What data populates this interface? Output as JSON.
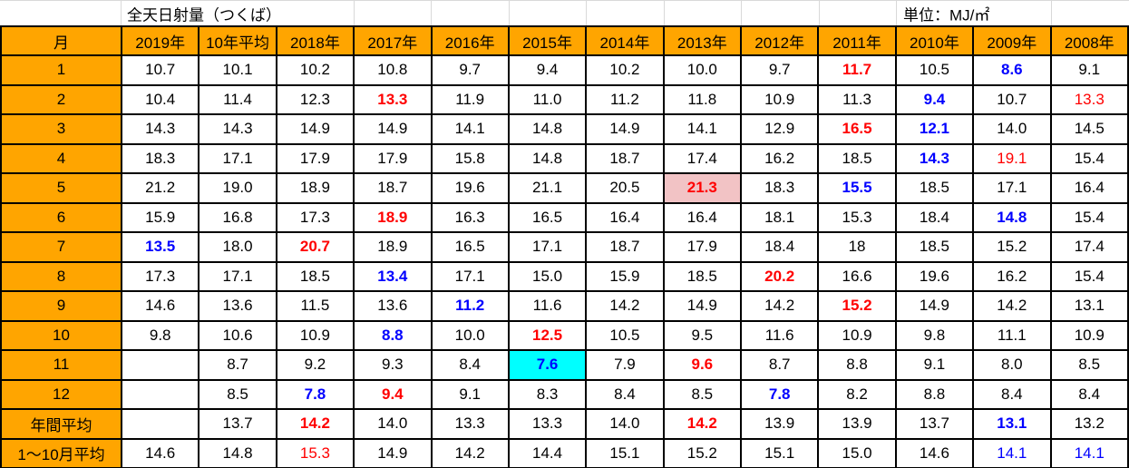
{
  "title": "全天日射量（つくば）",
  "unit_label": "単位：MJ/㎡",
  "colors": {
    "header_bg": "#ffa500",
    "highlight_pink": "#f2c3c5",
    "highlight_cyan": "#00ffff",
    "max_text": "#ff0000",
    "min_text": "#0000ff",
    "border": "#000000",
    "gridline": "#d9d9d9"
  },
  "table": {
    "columns": [
      "月",
      "2019年",
      "10年平均",
      "2018年",
      "2017年",
      "2016年",
      "2015年",
      "2014年",
      "2013年",
      "2012年",
      "2011年",
      "2010年",
      "2009年",
      "2008年"
    ],
    "rows": [
      {
        "label": "1",
        "cells": [
          "10.7",
          "10.1",
          "10.2",
          "10.8",
          "9.7",
          "9.4",
          "10.2",
          "10.0",
          "9.7",
          {
            "v": "11.7",
            "c": "red",
            "b": true
          },
          "10.5",
          {
            "v": "8.6",
            "c": "blue",
            "b": true
          },
          "9.1"
        ]
      },
      {
        "label": "2",
        "cells": [
          "10.4",
          "11.4",
          "12.3",
          {
            "v": "13.3",
            "c": "red",
            "b": true
          },
          "11.9",
          "11.0",
          "11.2",
          "11.8",
          "10.9",
          "11.3",
          {
            "v": "9.4",
            "c": "blue",
            "b": true
          },
          "10.7",
          {
            "v": "13.3",
            "c": "red"
          }
        ]
      },
      {
        "label": "3",
        "cells": [
          "14.3",
          "14.3",
          "14.9",
          "14.9",
          "14.1",
          "14.8",
          "14.9",
          "14.1",
          "12.9",
          {
            "v": "16.5",
            "c": "red",
            "b": true
          },
          {
            "v": "12.1",
            "c": "blue",
            "b": true
          },
          "14.0",
          "14.5"
        ]
      },
      {
        "label": "4",
        "cells": [
          "18.3",
          "17.1",
          "17.9",
          "17.9",
          "15.8",
          "14.8",
          "18.7",
          "17.4",
          "16.2",
          "18.5",
          {
            "v": "14.3",
            "c": "blue",
            "b": true
          },
          {
            "v": "19.1",
            "c": "red"
          },
          "15.4"
        ]
      },
      {
        "label": "5",
        "cells": [
          "21.2",
          "19.0",
          "18.9",
          "18.7",
          "19.6",
          "21.1",
          "20.5",
          {
            "v": "21.3",
            "c": "red",
            "b": true,
            "bg": "pink"
          },
          "18.3",
          {
            "v": "15.5",
            "c": "blue",
            "b": true
          },
          "18.5",
          "17.1",
          "16.4"
        ]
      },
      {
        "label": "6",
        "cells": [
          "15.9",
          "16.8",
          "17.3",
          {
            "v": "18.9",
            "c": "red",
            "b": true
          },
          "16.3",
          "16.5",
          "16.4",
          "16.4",
          "18.1",
          "15.3",
          "18.4",
          {
            "v": "14.8",
            "c": "blue",
            "b": true
          },
          "15.4"
        ]
      },
      {
        "label": "7",
        "cells": [
          {
            "v": "13.5",
            "c": "blue",
            "b": true
          },
          "18.0",
          {
            "v": "20.7",
            "c": "red",
            "b": true
          },
          "18.9",
          "16.5",
          "17.1",
          "18.7",
          "17.9",
          "18.4",
          "18",
          "18.5",
          "15.2",
          "17.4"
        ]
      },
      {
        "label": "8",
        "cells": [
          "17.3",
          "17.1",
          "18.5",
          {
            "v": "13.4",
            "c": "blue",
            "b": true
          },
          "17.1",
          "15.0",
          "15.9",
          "18.5",
          {
            "v": "20.2",
            "c": "red",
            "b": true
          },
          "16.6",
          "19.6",
          "16.2",
          "15.4"
        ]
      },
      {
        "label": "9",
        "cells": [
          "14.6",
          "13.6",
          "11.5",
          "13.6",
          {
            "v": "11.2",
            "c": "blue",
            "b": true
          },
          "11.6",
          "14.2",
          "14.9",
          "14.2",
          {
            "v": "15.2",
            "c": "red",
            "b": true
          },
          "14.9",
          "14.2",
          "13.1"
        ]
      },
      {
        "label": "10",
        "cells": [
          "9.8",
          "10.6",
          "10.9",
          {
            "v": "8.8",
            "c": "blue",
            "b": true
          },
          "10.0",
          {
            "v": "12.5",
            "c": "red",
            "b": true
          },
          "10.5",
          "9.5",
          "11.6",
          "10.9",
          "9.8",
          "11.1",
          "10.9"
        ]
      },
      {
        "label": "11",
        "cells": [
          "",
          "8.7",
          "9.2",
          "9.3",
          "8.4",
          {
            "v": "7.6",
            "c": "blue",
            "b": true,
            "bg": "cyan"
          },
          "7.9",
          {
            "v": "9.6",
            "c": "red",
            "b": true
          },
          "8.7",
          "8.8",
          "9.1",
          "8.0",
          "8.5"
        ]
      },
      {
        "label": "12",
        "cells": [
          "",
          "8.5",
          {
            "v": "7.8",
            "c": "blue",
            "b": true
          },
          {
            "v": "9.4",
            "c": "red",
            "b": true
          },
          "9.1",
          "8.3",
          "8.4",
          "8.5",
          {
            "v": "7.8",
            "c": "blue",
            "b": true
          },
          "8.2",
          "8.8",
          "8.4",
          "8.4"
        ]
      },
      {
        "label": "年間平均",
        "cells": [
          "",
          "13.7",
          {
            "v": "14.2",
            "c": "red",
            "b": true
          },
          "14.0",
          "13.3",
          "13.3",
          "14.0",
          {
            "v": "14.2",
            "c": "red",
            "b": true
          },
          "13.9",
          "13.9",
          "13.7",
          {
            "v": "13.1",
            "c": "blue",
            "b": true
          },
          "13.2"
        ]
      },
      {
        "label": "1～10月平均",
        "cells": [
          "14.6",
          "14.8",
          {
            "v": "15.3",
            "c": "red"
          },
          "14.9",
          "14.2",
          "14.4",
          "15.1",
          "15.2",
          "15.1",
          "15.0",
          "14.6",
          {
            "v": "14.1",
            "c": "blue"
          },
          {
            "v": "14.1",
            "c": "blue"
          }
        ]
      }
    ]
  }
}
